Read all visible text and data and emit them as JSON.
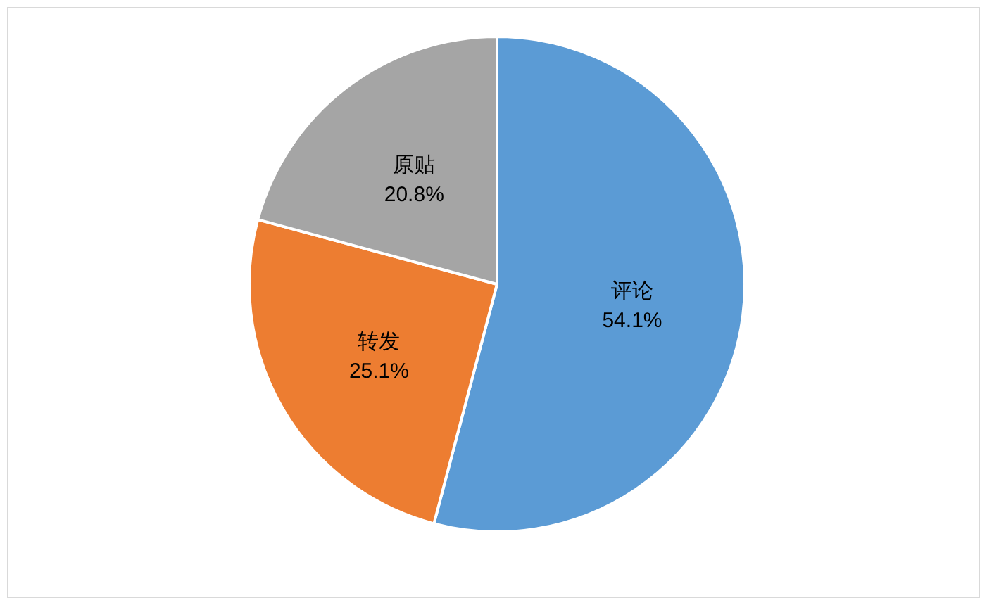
{
  "chart_data": {
    "type": "pie",
    "categories": [
      "评论",
      "转发",
      "原贴"
    ],
    "values": [
      54.1,
      25.1,
      20.8
    ],
    "colors": [
      "#5b9bd5",
      "#ed7d31",
      "#a5a5a5"
    ],
    "value_labels": [
      "54.1%",
      "25.1%",
      "20.8%"
    ]
  }
}
